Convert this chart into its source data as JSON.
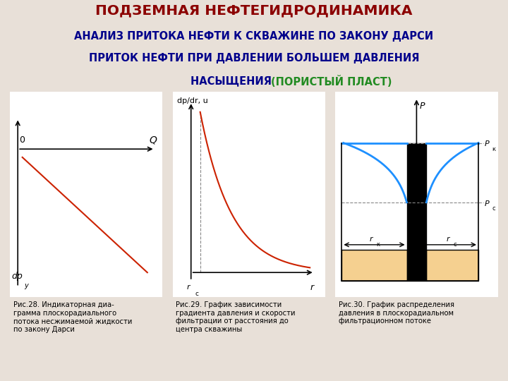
{
  "bg_color": "#e8e0d8",
  "title1": "ПОДЗЕМНАЯ НЕФТЕГИДРОДИНАМИКА",
  "title1_color": "#8b0000",
  "title2": "АНАЛИЗ ПРИТОКА НЕФТИ К СКВАЖИНЕ ПО ЗАКОНУ ДАРСИ",
  "title2_color": "#00008b",
  "title3_part1": "ПРИТОК НЕФТИ ПРИ ДАВЛЕНИИ БОЛЬШЕМ ДАВЛЕНИЯ",
  "title3_color": "#00008b",
  "title3_paren_color": "#228b22",
  "panel_bg": "#ffffff",
  "caption1": "Рис.28. Индикаторная диа-\nграмма плоскорадиального\nпотока несжимаемой жидкости\nпо закону Дарси",
  "caption2": "Рис.29. График зависимости\nградиента давления и скорости\nфильтрации от расстояния до\nцентра скважины",
  "caption3": "Рис.30. График распределения\nдавления в плоскорадиальном\nфильтрационном потоке",
  "line1_color": "#cc2200",
  "line2_color": "#cc2200",
  "line3_color": "#1e90ff",
  "sand_color": "#f5d090",
  "dashed_color": "#888888"
}
